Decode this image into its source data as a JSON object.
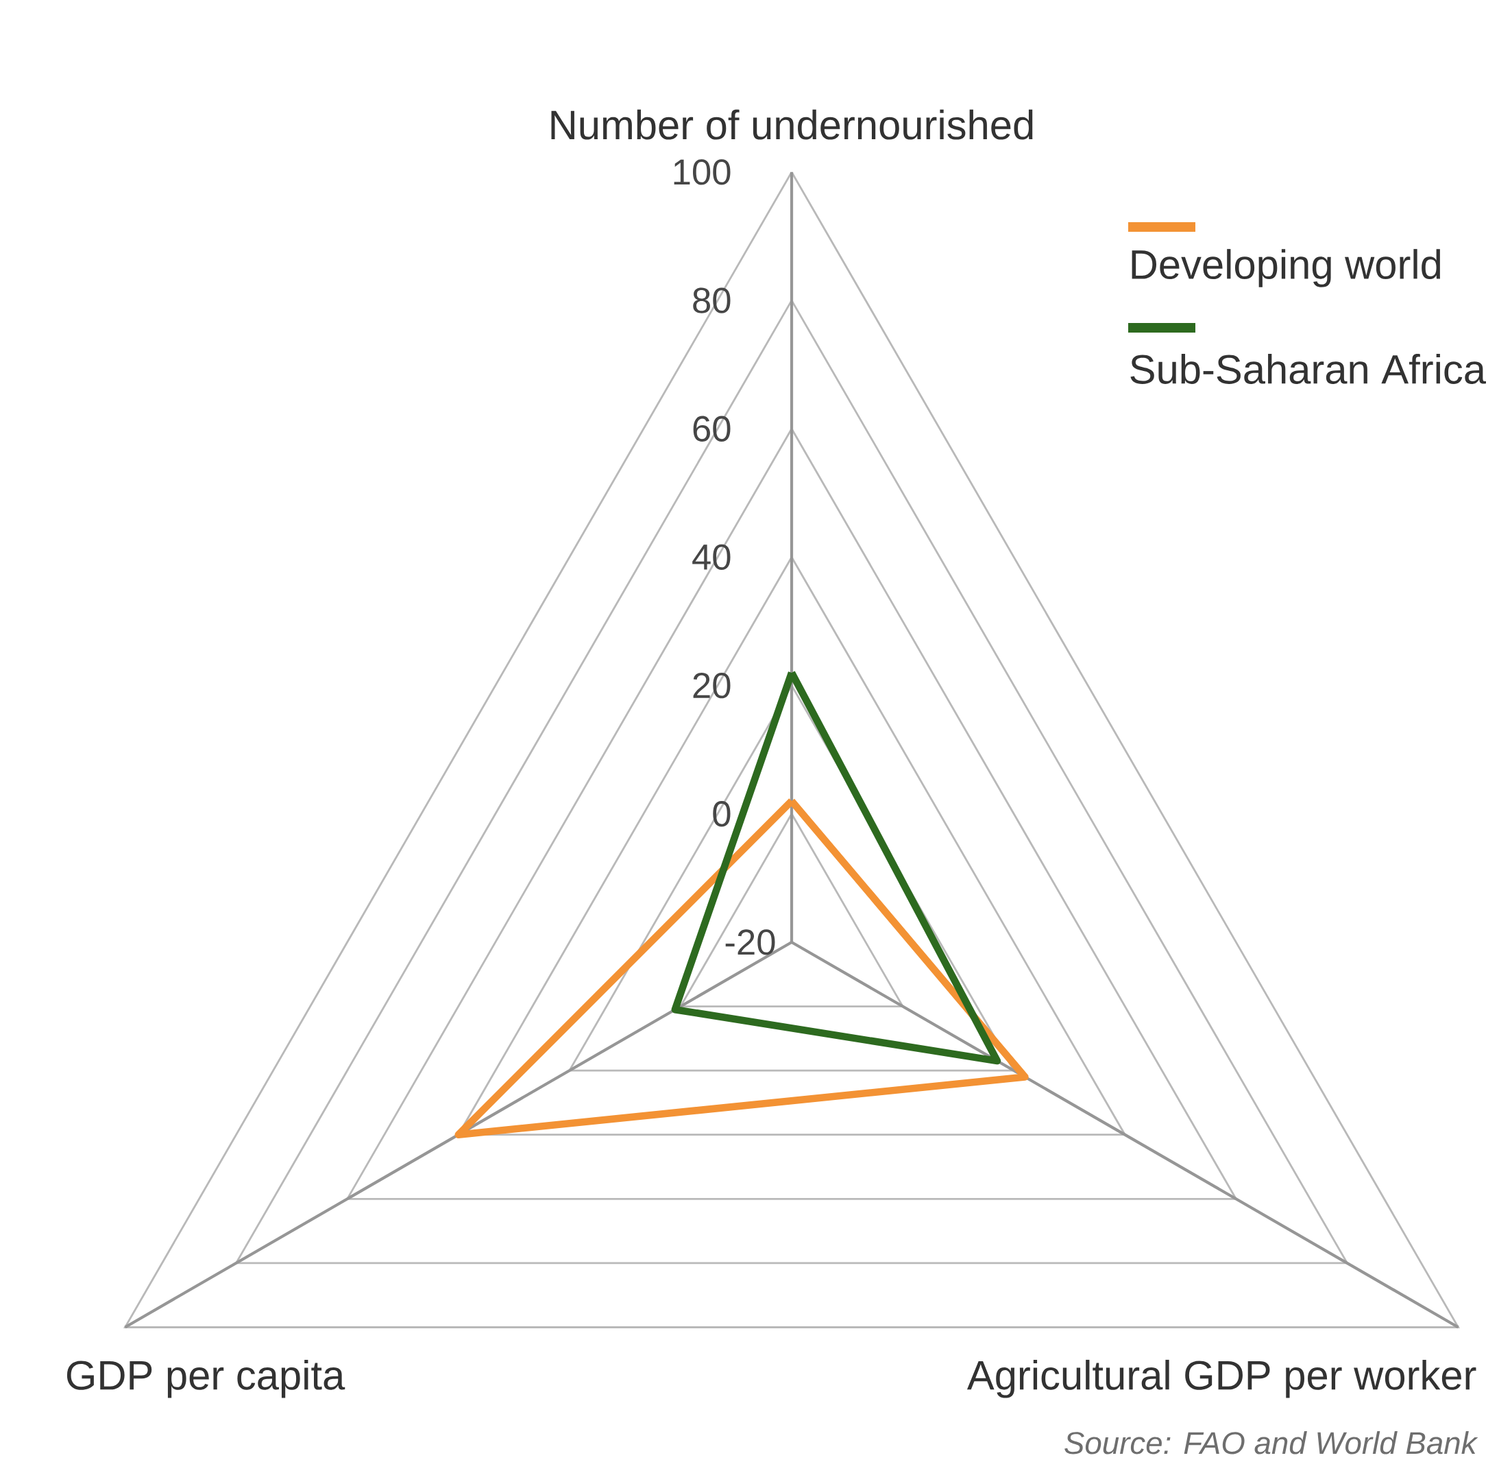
{
  "chart_data": {
    "type": "radar",
    "categories": [
      "Number of undernourished",
      "Agricultural GDP per worker",
      "GDP per capita"
    ],
    "series": [
      {
        "name": "Developing world",
        "color": "#f39234",
        "values": [
          2,
          22,
          40
        ]
      },
      {
        "name": "Sub-Saharan Africa",
        "color": "#2d6a1f",
        "values": [
          22,
          17,
          1
        ]
      }
    ],
    "ylim": [
      -20,
      100
    ],
    "yticks": [
      -20,
      0,
      20,
      40,
      60,
      80,
      100
    ],
    "legend": "top right",
    "annotations": [
      "Source: FAO and World Bank"
    ]
  }
}
